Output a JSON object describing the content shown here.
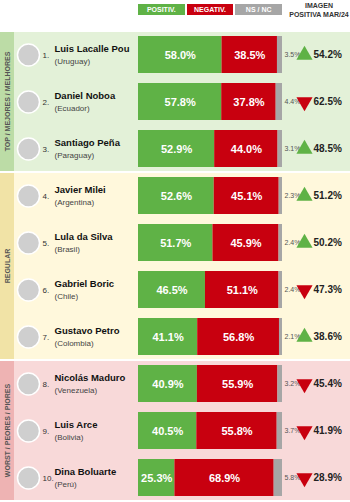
{
  "chart_data": {
    "type": "bar",
    "orientation": "horizontal",
    "stacked": true,
    "data_labels": true,
    "tick_labels": false,
    "legend": "top",
    "categories": [
      "Luis Lacalle Pou",
      "Daniel Noboa",
      "Santiago Peña",
      "Javier Milei",
      "Lula da Silva",
      "Gabriel Boric",
      "Gustavo Petro",
      "Nicolás Maduro",
      "Luis Arce",
      "Dina Boluarte"
    ],
    "countries": [
      "(Uruguay)",
      "(Ecuador)",
      "(Paraguay)",
      "(Argentina)",
      "(Brasil)",
      "(Chile)",
      "(Colombia)",
      "(Venezuela)",
      "(Bolivia)",
      "(Perú)"
    ],
    "ranks": [
      "1.",
      "2.",
      "3.",
      "4.",
      "5.",
      "6.",
      "7.",
      "8.",
      "9.",
      "10."
    ],
    "groups": [
      {
        "label": "TOP / MEJORES / MELHORES",
        "members": [
          "Luis Lacalle Pou",
          "Daniel Noboa",
          "Santiago Peña"
        ]
      },
      {
        "label": "REGULAR",
        "members": [
          "Javier Milei",
          "Lula da Silva",
          "Gabriel Boric",
          "Gustavo Petro"
        ]
      },
      {
        "label": "WORST / PEORES / PIORES",
        "members": [
          "Nicolás Maduro",
          "Luis Arce",
          "Dina Boluarte"
        ]
      }
    ],
    "xlim": [
      0,
      100
    ],
    "series": [
      {
        "name": "POSITIV.",
        "color": "#5fb246",
        "values": [
          58.0,
          57.8,
          52.9,
          52.6,
          51.7,
          46.5,
          41.1,
          40.9,
          40.5,
          25.3
        ],
        "value_labels": [
          "58.0%",
          "57.8%",
          "52.9%",
          "52.6%",
          "51.7%",
          "46.5%",
          "41.1%",
          "40.9%",
          "40.5%",
          "25.3%"
        ]
      },
      {
        "name": "NEGATIV.",
        "color": "#c8000f",
        "values": [
          38.5,
          37.8,
          44.0,
          45.1,
          45.9,
          51.1,
          56.8,
          55.9,
          55.8,
          68.9
        ],
        "value_labels": [
          "38.5%",
          "37.8%",
          "44.0%",
          "45.1%",
          "45.9%",
          "51.1%",
          "56.8%",
          "55.9%",
          "55.8%",
          "68.9%"
        ]
      },
      {
        "name": "NS / NC",
        "color": "#a6a6a6",
        "values": [
          3.5,
          4.4,
          3.1,
          2.3,
          2.4,
          2.4,
          2.1,
          3.2,
          3.7,
          5.8
        ],
        "value_labels": [
          "3.5%",
          "4.4%",
          "3.1%",
          "2.3%",
          "2.4%",
          "2.4%",
          "2.1%",
          "3.2%",
          "3.7%",
          "5.8%"
        ]
      }
    ],
    "previous": {
      "name": "IMAGEN POSITIVA MAR/24",
      "values": [
        54.2,
        62.5,
        48.5,
        51.2,
        50.2,
        47.3,
        38.6,
        45.4,
        41.9,
        28.9
      ],
      "value_labels": [
        "54.2%",
        "62.5%",
        "48.5%",
        "51.2%",
        "50.2%",
        "47.3%",
        "38.6%",
        "45.4%",
        "41.9%",
        "28.9%"
      ]
    }
  }
}
